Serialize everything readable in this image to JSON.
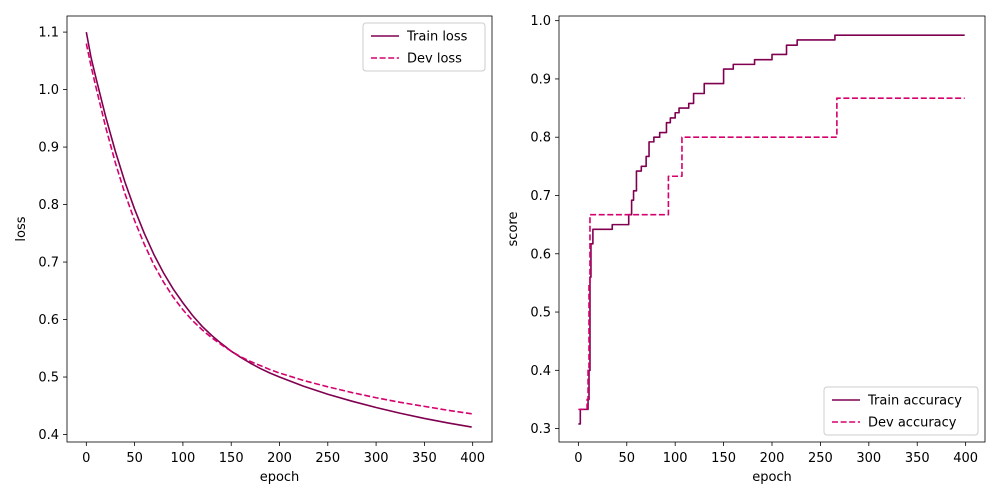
{
  "chart_data": [
    {
      "type": "line",
      "xlabel": "epoch",
      "ylabel": "loss",
      "xlim": [
        -20,
        420
      ],
      "ylim": [
        0.387,
        1.128
      ],
      "xticks": [
        0,
        50,
        100,
        150,
        200,
        250,
        300,
        350,
        400
      ],
      "yticks": [
        0.4,
        0.5,
        0.6,
        0.7,
        0.8,
        0.9,
        1.0,
        1.1
      ],
      "ytick_decimals": 1,
      "grid": false,
      "legend_position": "upper-right",
      "series": [
        {
          "name": "Train loss",
          "color": "#800050",
          "dash": "solid",
          "x": [
            0,
            5,
            10,
            20,
            30,
            40,
            50,
            60,
            70,
            80,
            90,
            100,
            110,
            120,
            130,
            140,
            150,
            160,
            170,
            180,
            190,
            200,
            225,
            250,
            275,
            300,
            325,
            350,
            375,
            399
          ],
          "y": [
            1.1,
            1.055,
            1.02,
            0.953,
            0.893,
            0.839,
            0.792,
            0.75,
            0.713,
            0.681,
            0.653,
            0.629,
            0.607,
            0.588,
            0.572,
            0.558,
            0.545,
            0.534,
            0.524,
            0.515,
            0.507,
            0.5,
            0.484,
            0.47,
            0.458,
            0.447,
            0.437,
            0.428,
            0.42,
            0.413
          ]
        },
        {
          "name": "Dev loss",
          "color": "#d6006d",
          "dash": "dashed",
          "x": [
            0,
            5,
            10,
            20,
            30,
            40,
            50,
            60,
            70,
            80,
            90,
            100,
            110,
            120,
            130,
            140,
            150,
            160,
            170,
            180,
            190,
            200,
            225,
            250,
            275,
            300,
            325,
            350,
            375,
            399
          ],
          "y": [
            1.08,
            1.04,
            1.004,
            0.935,
            0.873,
            0.819,
            0.772,
            0.731,
            0.695,
            0.665,
            0.639,
            0.617,
            0.598,
            0.582,
            0.568,
            0.556,
            0.545,
            0.535,
            0.527,
            0.52,
            0.513,
            0.507,
            0.494,
            0.483,
            0.473,
            0.464,
            0.456,
            0.449,
            0.442,
            0.436
          ]
        }
      ]
    },
    {
      "type": "line",
      "xlabel": "epoch",
      "ylabel": "score",
      "xlim": [
        -20,
        420
      ],
      "ylim": [
        0.277,
        1.008
      ],
      "xticks": [
        0,
        50,
        100,
        150,
        200,
        250,
        300,
        350,
        400
      ],
      "yticks": [
        0.3,
        0.4,
        0.5,
        0.6,
        0.7,
        0.8,
        0.9,
        1.0
      ],
      "ytick_decimals": 1,
      "grid": false,
      "legend_position": "lower-right",
      "series": [
        {
          "name": "Train accuracy",
          "color": "#800050",
          "dash": "solid",
          "x": [
            0,
            2,
            2,
            10,
            10,
            11,
            11,
            12,
            12,
            13,
            13,
            15,
            15,
            35,
            35,
            52,
            52,
            55,
            55,
            57,
            57,
            60,
            60,
            65,
            65,
            70,
            70,
            73,
            73,
            78,
            78,
            84,
            84,
            91,
            91,
            95,
            95,
            100,
            100,
            104,
            104,
            114,
            114,
            119,
            119,
            130,
            130,
            150,
            150,
            160,
            160,
            182,
            182,
            200,
            200,
            215,
            215,
            226,
            226,
            265,
            265,
            287,
            287,
            399
          ],
          "y": [
            0.308,
            0.308,
            0.333,
            0.333,
            0.35,
            0.35,
            0.4,
            0.4,
            0.56,
            0.56,
            0.617,
            0.617,
            0.642,
            0.642,
            0.65,
            0.65,
            0.667,
            0.667,
            0.692,
            0.692,
            0.708,
            0.708,
            0.742,
            0.742,
            0.75,
            0.75,
            0.767,
            0.767,
            0.792,
            0.792,
            0.8,
            0.8,
            0.808,
            0.808,
            0.825,
            0.825,
            0.833,
            0.833,
            0.842,
            0.842,
            0.85,
            0.85,
            0.858,
            0.858,
            0.875,
            0.875,
            0.892,
            0.892,
            0.917,
            0.917,
            0.925,
            0.925,
            0.933,
            0.933,
            0.942,
            0.942,
            0.958,
            0.958,
            0.967,
            0.967,
            0.975,
            0.975,
            0.975,
            0.975
          ]
        },
        {
          "name": "Dev accuracy",
          "color": "#d6006d",
          "dash": "dashed",
          "x": [
            0,
            1,
            1,
            9,
            9,
            10,
            10,
            11,
            11,
            12,
            12,
            14,
            14,
            93,
            93,
            107,
            107,
            267,
            267,
            399
          ],
          "y": [
            0.333,
            0.333,
            0.333,
            0.333,
            0.35,
            0.35,
            0.4,
            0.4,
            0.55,
            0.55,
            0.667,
            0.667,
            0.667,
            0.667,
            0.733,
            0.733,
            0.8,
            0.8,
            0.867,
            0.867
          ]
        }
      ]
    }
  ]
}
